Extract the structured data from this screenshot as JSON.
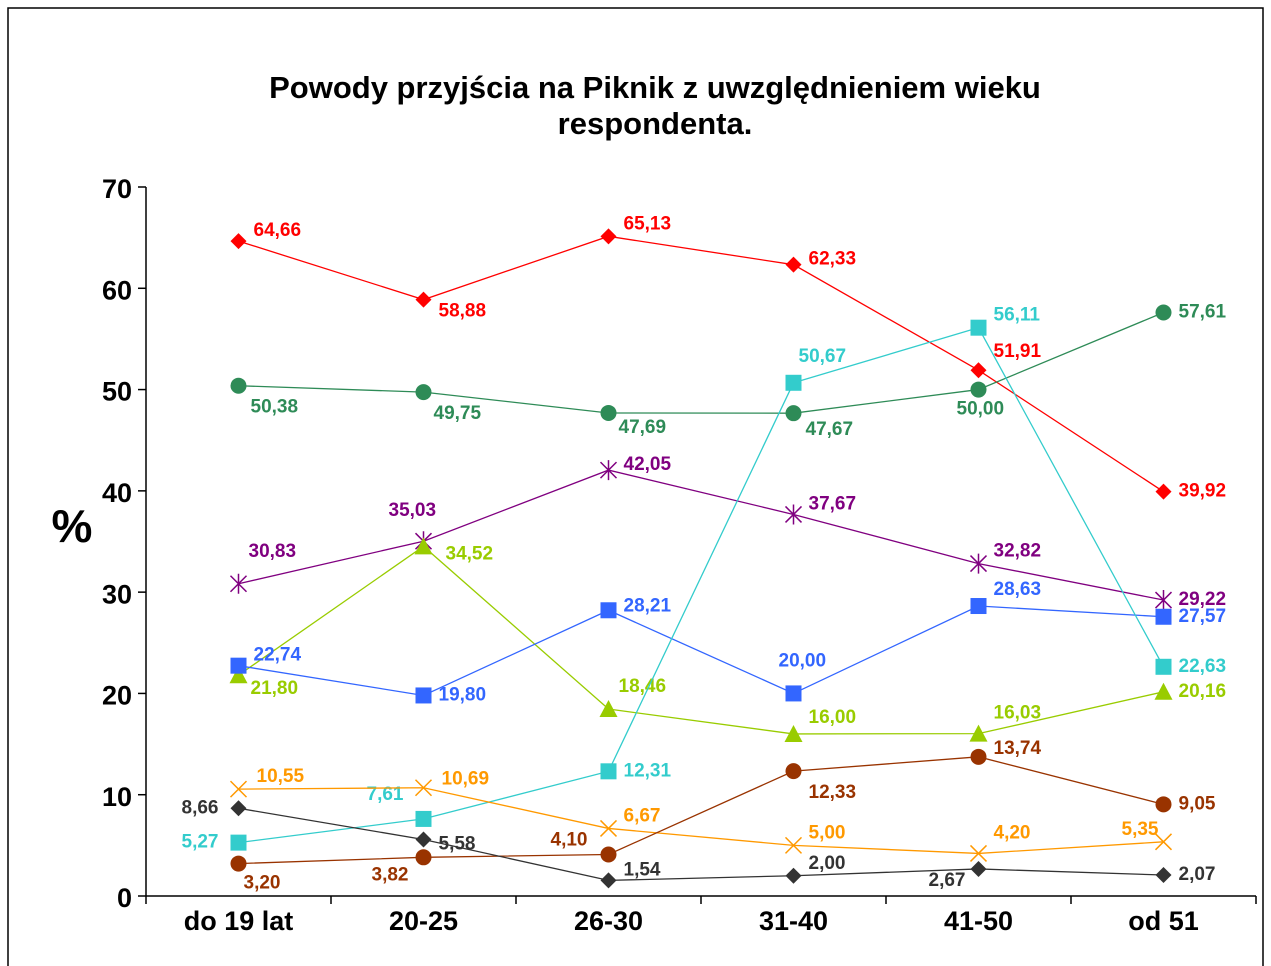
{
  "chart_data": {
    "type": "line",
    "title": "Powody przyjścia na Piknik z uwzględnieniem wieku respondenta.",
    "ylabel": "%",
    "categories": [
      "do 19 lat",
      "20-25",
      "26-30",
      "31-40",
      "41-50",
      "od 51"
    ],
    "ylim": [
      0,
      70
    ],
    "yticks": [
      0,
      10,
      20,
      30,
      40,
      50,
      60,
      70
    ],
    "grid": false,
    "series": [
      {
        "color": "#ff0000",
        "marker": "diamond",
        "values": [
          64.66,
          58.88,
          65.13,
          62.33,
          51.91,
          39.92
        ],
        "value_labels": [
          "64,66",
          "58,88",
          "65,13",
          "62,33",
          "51,91",
          "39,92"
        ]
      },
      {
        "color": "#2e8b57",
        "marker": "circle",
        "values": [
          50.38,
          49.75,
          47.69,
          47.67,
          50.0,
          57.61
        ],
        "value_labels": [
          "50,38",
          "49,75",
          "47,69",
          "47,67",
          "50,00",
          "57,61"
        ]
      },
      {
        "color": "#800080",
        "marker": "star",
        "values": [
          30.83,
          35.03,
          42.05,
          37.67,
          32.82,
          29.22
        ],
        "value_labels": [
          "30,83",
          "35,03",
          "42,05",
          "37,67",
          "32,82",
          "29,22"
        ]
      },
      {
        "color": "#99cc00",
        "marker": "triangle",
        "values": [
          21.8,
          34.52,
          18.46,
          16.0,
          16.03,
          20.16
        ],
        "value_labels": [
          "21,80",
          "34,52",
          "18,46",
          "16,00",
          "16,03",
          "20,16"
        ]
      },
      {
        "color": "#3366ff",
        "marker": "square",
        "values": [
          22.74,
          19.8,
          28.21,
          20.0,
          28.63,
          27.57
        ],
        "value_labels": [
          "22,74",
          "19,80",
          "28,21",
          "20,00",
          "28,63",
          "27,57"
        ]
      },
      {
        "color": "#33cccc",
        "marker": "square",
        "values": [
          5.27,
          7.61,
          12.31,
          50.67,
          56.11,
          22.63
        ],
        "value_labels": [
          "5,27",
          "7,61",
          "12,31",
          "50,67",
          "56,11",
          "22,63"
        ]
      },
      {
        "color": "#ff9900",
        "marker": "x",
        "values": [
          10.55,
          10.69,
          6.67,
          5.0,
          4.2,
          5.35
        ],
        "value_labels": [
          "10,55",
          "10,69",
          "6,67",
          "5,00",
          "4,20",
          "5,35"
        ]
      },
      {
        "color": "#993300",
        "marker": "circle",
        "values": [
          3.2,
          3.82,
          4.1,
          12.33,
          13.74,
          9.05
        ],
        "value_labels": [
          "3,20",
          "3,82",
          "4,10",
          "12,33",
          "13,74",
          "9,05"
        ]
      },
      {
        "color": "#333333",
        "marker": "diamond",
        "values": [
          8.66,
          5.58,
          1.54,
          2.0,
          2.67,
          2.07
        ],
        "value_labels": [
          "8,66",
          "5,58",
          "1,54",
          "2,00",
          "2,67",
          "2,07"
        ]
      }
    ]
  }
}
